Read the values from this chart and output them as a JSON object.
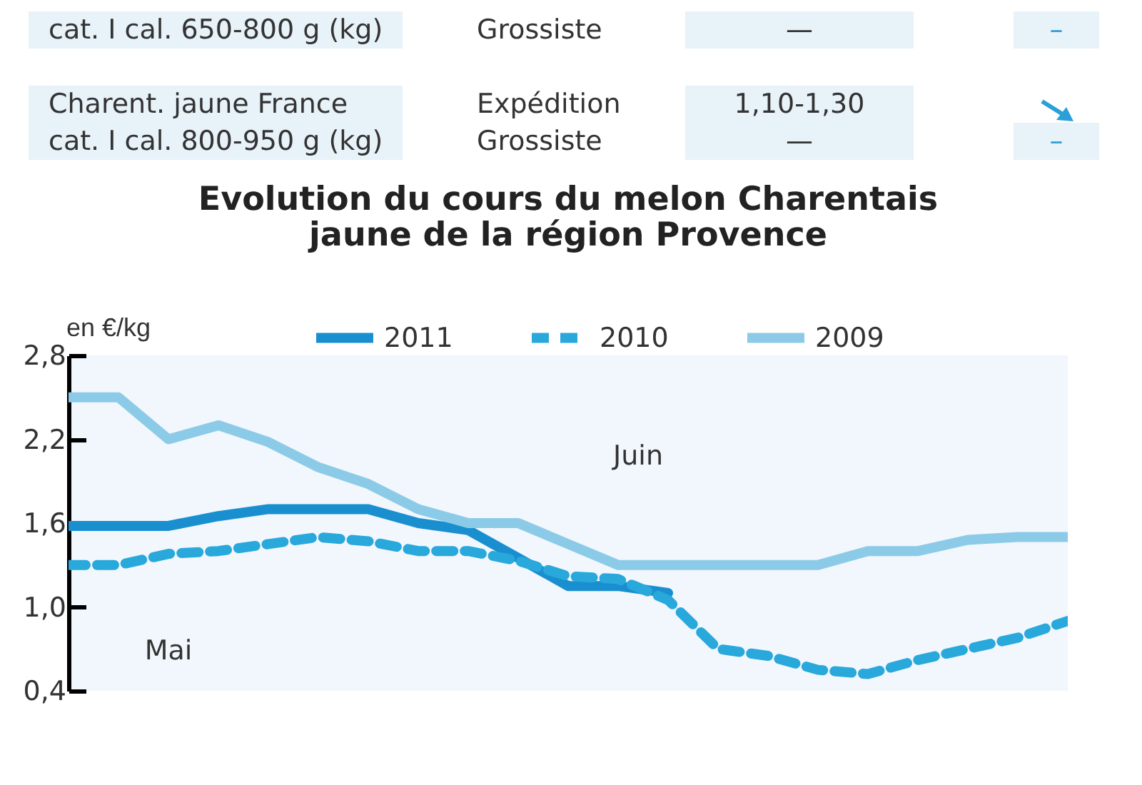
{
  "chart_data": {
    "type": "line",
    "title": "Evolution du cours du melon Charentais\njaune de la région Provence",
    "ylabel": "en €/kg",
    "annotations": [
      "cat. I cal. 650-800 g (kg)",
      "Grossiste",
      "—",
      "–",
      "Charent. jaune France\ncat. I cal. 800-950 g (kg)",
      "Expédition\nGrossiste",
      "1,10-1,30\n—",
      "–",
      "Mai",
      "Juin"
    ],
    "categories": [
      null,
      null,
      null,
      null,
      null,
      null,
      null,
      null,
      null,
      null,
      null,
      null,
      null,
      null,
      null,
      null,
      null,
      null,
      null,
      null,
      null
    ],
    "series": [
      {
        "name": "2011",
        "color": "#1a8fd0",
        "line_style": "solid",
        "values": [
          1.58,
          1.58,
          1.58,
          1.65,
          1.7,
          1.7,
          1.7,
          1.6,
          1.55,
          1.35,
          1.15,
          1.15,
          1.1,
          null,
          null,
          null,
          null,
          null,
          null,
          null,
          null
        ]
      },
      {
        "name": "2010",
        "color": "#29a8dc",
        "line_style": "dashed",
        "values": [
          1.3,
          1.3,
          1.38,
          1.4,
          1.45,
          1.5,
          1.47,
          1.4,
          1.4,
          1.33,
          1.22,
          1.2,
          1.05,
          0.7,
          0.65,
          0.55,
          0.52,
          0.62,
          0.7,
          0.78,
          0.9
        ]
      },
      {
        "name": "2009",
        "color": "#8ccbe8",
        "line_style": "solid",
        "values": [
          2.5,
          2.5,
          2.2,
          2.3,
          2.18,
          2.0,
          1.88,
          1.7,
          1.6,
          1.6,
          1.45,
          1.3,
          1.3,
          1.3,
          1.3,
          1.3,
          1.4,
          1.4,
          1.48,
          1.5,
          1.5
        ]
      }
    ],
    "ylim": [
      0.4,
      2.8
    ],
    "yticks": [
      {
        "value": 0.4,
        "label": "0,4"
      },
      {
        "value": 1.0,
        "label": "1,0"
      },
      {
        "value": 1.6,
        "label": "1,6"
      },
      {
        "value": 2.2,
        "label": "2,2"
      },
      {
        "value": 2.8,
        "label": "2,8"
      }
    ],
    "tick_labels": "y",
    "grid": false,
    "legend": "top"
  }
}
